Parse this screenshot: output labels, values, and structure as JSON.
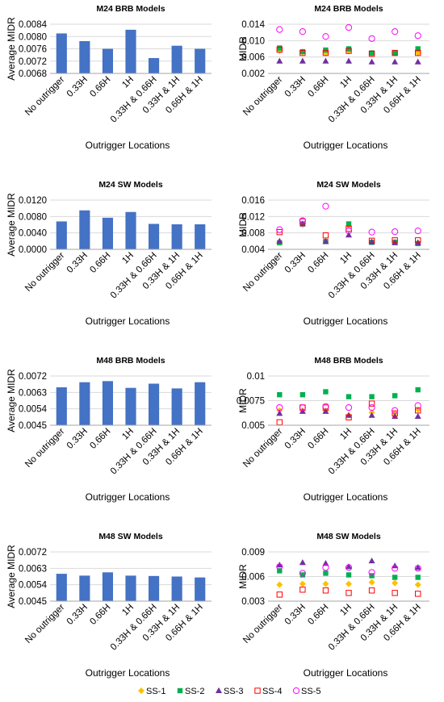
{
  "chart_data": [
    {
      "id": "m24-brb-avg",
      "type": "bar",
      "title": "M24 BRB Models",
      "ylabel": "Average MIDR",
      "xlabel": "Outrigger Locations",
      "categories": [
        "No outrigger",
        "0.33H",
        "0.66H",
        "1H",
        "0.33H & 0.66H",
        "0.33H & 1H",
        "0.66H & 1H"
      ],
      "values": [
        0.0081,
        0.00785,
        0.0076,
        0.00822,
        0.0073,
        0.0077,
        0.0076
      ],
      "ylim": [
        0.0068,
        0.0084
      ],
      "yticks": [
        "0.0068",
        "0.0072",
        "0.0076",
        "0.0080",
        "0.0084"
      ],
      "color": "#4472C4",
      "grid": true
    },
    {
      "id": "m24-brb-ss",
      "type": "scatter",
      "title": "M24 BRB Models",
      "ylabel": "MIDR",
      "xlabel": "Outrigger Locations",
      "categories": [
        "No outrigger",
        "0.33H",
        "0.66H",
        "1H",
        "0.33H & 0.66H",
        "0.33H & 1H",
        "0.66H & 1H"
      ],
      "ylim": [
        0.002,
        0.014
      ],
      "yticks": [
        "0.002",
        "0.006",
        "0.010",
        "0.014"
      ],
      "grid": true,
      "series": [
        {
          "name": "SS-1",
          "marker": "diamond",
          "values": [
            0.0075,
            0.0072,
            0.007,
            0.0075,
            0.0068,
            0.007,
            0.007
          ]
        },
        {
          "name": "SS-2",
          "marker": "square",
          "values": [
            0.0082,
            0.0073,
            0.0077,
            0.008,
            0.007,
            0.007,
            0.008
          ]
        },
        {
          "name": "SS-3",
          "marker": "triangle",
          "values": [
            0.005,
            0.005,
            0.005,
            0.005,
            0.0048,
            0.0048,
            0.0048
          ]
        },
        {
          "name": "SS-4",
          "marker": "open-square",
          "values": [
            0.0078,
            0.007,
            0.007,
            0.0075,
            0.0068,
            0.007,
            0.007
          ]
        },
        {
          "name": "SS-5",
          "marker": "open-circle",
          "values": [
            0.0127,
            0.0122,
            0.011,
            0.0132,
            0.0105,
            0.0122,
            0.0112
          ]
        }
      ]
    },
    {
      "id": "m24-sw-avg",
      "type": "bar",
      "title": "M24 SW Models",
      "ylabel": "Average MIDR",
      "xlabel": "Outrigger Locations",
      "categories": [
        "No outrigger",
        "0.33H",
        "0.66H",
        "1H",
        "0.33H & 0.66H",
        "0.33H & 1H",
        "0.66H & 1H"
      ],
      "values": [
        0.0068,
        0.0095,
        0.0077,
        0.0091,
        0.0062,
        0.0061,
        0.0061
      ],
      "ylim": [
        0.0,
        0.012
      ],
      "yticks": [
        "0.0000",
        "0.0040",
        "0.0080",
        "0.0120"
      ],
      "color": "#4472C4",
      "grid": true
    },
    {
      "id": "m24-sw-ss",
      "type": "scatter",
      "title": "M24 SW Models",
      "ylabel": "MIDR",
      "xlabel": "Outrigger Locations",
      "categories": [
        "No outrigger",
        "0.33H",
        "0.66H",
        "1H",
        "0.33H & 0.66H",
        "0.33H & 1H",
        "0.66H & 1H"
      ],
      "ylim": [
        0.004,
        0.016
      ],
      "yticks": [
        "0.004",
        "0.008",
        "0.012",
        "0.016"
      ],
      "grid": true,
      "series": [
        {
          "name": "SS-1",
          "marker": "diamond",
          "values": [
            0.0058,
            0.01,
            0.006,
            0.0098,
            0.0058,
            0.0058,
            0.0056
          ]
        },
        {
          "name": "SS-2",
          "marker": "square",
          "values": [
            0.0056,
            0.0102,
            0.0059,
            0.0102,
            0.0057,
            0.0057,
            0.0054
          ]
        },
        {
          "name": "SS-3",
          "marker": "triangle",
          "values": [
            0.006,
            0.0102,
            0.0059,
            0.0075,
            0.0058,
            0.0056,
            0.0056
          ]
        },
        {
          "name": "SS-4",
          "marker": "open-square",
          "values": [
            0.0082,
            0.0108,
            0.0074,
            0.009,
            0.0061,
            0.0062,
            0.0062
          ]
        },
        {
          "name": "SS-5",
          "marker": "open-circle",
          "values": [
            0.0088,
            0.011,
            0.0145,
            0.0085,
            0.0082,
            0.0083,
            0.0085
          ]
        }
      ]
    },
    {
      "id": "m48-brb-avg",
      "type": "bar",
      "title": "M48 BRB Models",
      "ylabel": "Average MIDR",
      "xlabel": "Outrigger Locations",
      "categories": [
        "No outrigger",
        "0.33H",
        "0.66H",
        "1H",
        "0.33H & 0.66H",
        "0.33H & 1H",
        "0.66H & 1H"
      ],
      "values": [
        0.00658,
        0.00686,
        0.00692,
        0.00655,
        0.00678,
        0.00652,
        0.00686
      ],
      "ylim": [
        0.0045,
        0.0072
      ],
      "yticks": [
        "0.0045",
        "0.0054",
        "0.0063",
        "0.0072"
      ],
      "color": "#4472C4",
      "grid": true
    },
    {
      "id": "m48-brb-ss",
      "type": "scatter",
      "title": "M48 BRB Models",
      "ylabel": "MIDR",
      "xlabel": "Outrigger Locations",
      "categories": [
        "No outrigger",
        "0.33H",
        "0.66H",
        "1H",
        "0.33H & 0.66H",
        "0.33H & 1H",
        "0.66H & 1H"
      ],
      "ylim": [
        0.005,
        0.01
      ],
      "yticks": [
        "0.005",
        "0.0075",
        "0.01"
      ],
      "grid": true,
      "series": [
        {
          "name": "SS-1",
          "marker": "diamond",
          "values": [
            0.0065,
            0.0065,
            0.0065,
            0.006,
            0.0063,
            0.0062,
            0.0066
          ]
        },
        {
          "name": "SS-2",
          "marker": "square",
          "values": [
            0.0081,
            0.0081,
            0.0084,
            0.0079,
            0.0079,
            0.008,
            0.0086
          ]
        },
        {
          "name": "SS-3",
          "marker": "triangle",
          "values": [
            0.0062,
            0.0064,
            0.0064,
            0.006,
            0.006,
            0.0059,
            0.0059
          ]
        },
        {
          "name": "SS-4",
          "marker": "open-square",
          "values": [
            0.0053,
            0.0068,
            0.0068,
            0.0058,
            0.0072,
            0.0062,
            0.0065
          ]
        },
        {
          "name": "SS-5",
          "marker": "open-circle",
          "values": [
            0.0068,
            0.0068,
            0.0069,
            0.0068,
            0.0068,
            0.0065,
            0.007
          ]
        }
      ]
    },
    {
      "id": "m48-sw-avg",
      "type": "bar",
      "title": "M48 SW Models",
      "ylabel": "Average MIDR",
      "xlabel": "Outrigger Locations",
      "categories": [
        "No outrigger",
        "0.33H",
        "0.66H",
        "1H",
        "0.33H & 0.66H",
        "0.33H & 1H",
        "0.66H & 1H"
      ],
      "values": [
        0.006,
        0.0059,
        0.00608,
        0.0059,
        0.00588,
        0.00585,
        0.0058
      ],
      "ylim": [
        0.0045,
        0.0072
      ],
      "yticks": [
        "0.0045",
        "0.0054",
        "0.0063",
        "0.0072"
      ],
      "color": "#4472C4",
      "grid": true
    },
    {
      "id": "m48-sw-ss",
      "type": "scatter",
      "title": "M48 SW Models",
      "ylabel": "MIDR",
      "xlabel": "Outrigger Locations",
      "categories": [
        "No outrigger",
        "0.33H",
        "0.66H",
        "1H",
        "0.33H & 0.66H",
        "0.33H & 1H",
        "0.66H & 1H"
      ],
      "ylim": [
        0.003,
        0.009
      ],
      "yticks": [
        "0.003",
        "0.006",
        "0.009"
      ],
      "grid": true,
      "series": [
        {
          "name": "SS-1",
          "marker": "diamond",
          "values": [
            0.005,
            0.0051,
            0.0051,
            0.0051,
            0.0053,
            0.0052,
            0.005
          ]
        },
        {
          "name": "SS-2",
          "marker": "square",
          "values": [
            0.0067,
            0.0062,
            0.0064,
            0.0062,
            0.0061,
            0.0059,
            0.0059
          ]
        },
        {
          "name": "SS-3",
          "marker": "triangle",
          "values": [
            0.0074,
            0.0077,
            0.0076,
            0.0072,
            0.0079,
            0.0073,
            0.0071
          ]
        },
        {
          "name": "SS-4",
          "marker": "open-square",
          "values": [
            0.0038,
            0.0044,
            0.0043,
            0.004,
            0.0043,
            0.004,
            0.0039
          ]
        },
        {
          "name": "SS-5",
          "marker": "open-circle",
          "values": [
            0.0072,
            0.0064,
            0.0071,
            0.0071,
            0.0065,
            0.007,
            0.007
          ]
        }
      ]
    }
  ],
  "legend": {
    "items": [
      {
        "name": "SS-1",
        "marker": "diamond",
        "color": "#FFC000"
      },
      {
        "name": "SS-2",
        "marker": "square",
        "color": "#00B050"
      },
      {
        "name": "SS-3",
        "marker": "triangle",
        "color": "#7030A0"
      },
      {
        "name": "SS-4",
        "marker": "open-square",
        "color": "#FF0000"
      },
      {
        "name": "SS-5",
        "marker": "open-circle",
        "color": "#FF00FF"
      }
    ],
    "position": "bottom-center"
  },
  "colors": {
    "bar": "#4472C4",
    "grid": "#D9D9D9",
    "axis": "#A6A6A6",
    "text": "#000000"
  }
}
